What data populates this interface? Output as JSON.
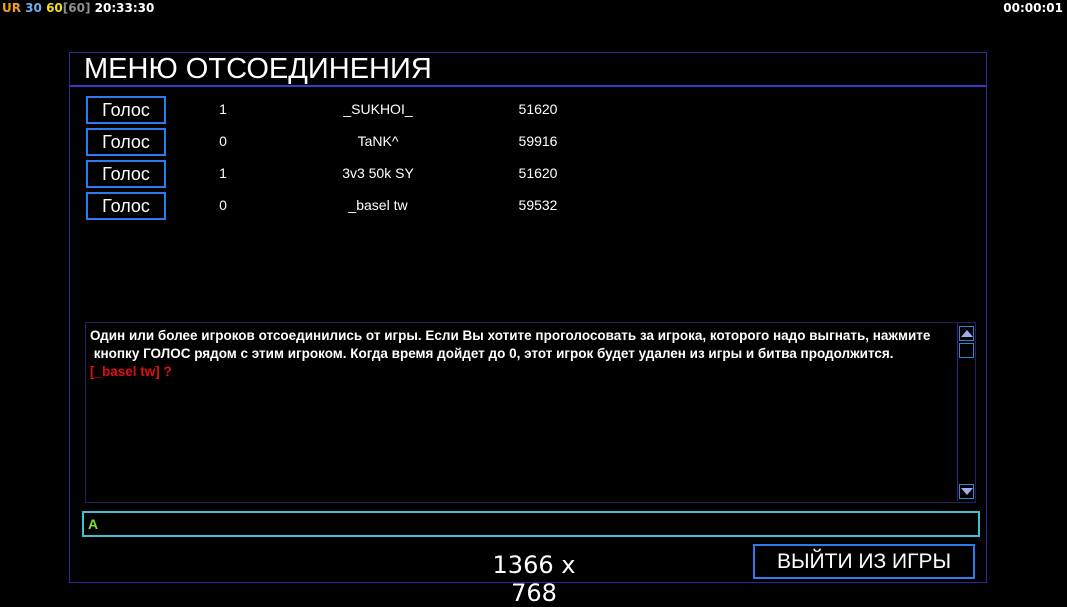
{
  "status_bar": {
    "ur": "UR",
    "fps_a": "30",
    "fps_b": "60",
    "fps_cap": "[60]",
    "clock": "20:33:30",
    "elapsed": "00:00:01",
    "colors": {
      "ur": "#f0a020",
      "fps_a": "#70b0f0",
      "fps_b": "#f0e020",
      "fps_cap": "#909090"
    }
  },
  "menu": {
    "title": "МЕНЮ ОТСОЕДИНЕНИЯ",
    "players": [
      {
        "vote_label": "Голос",
        "votes": "1",
        "name": "_SUKHOI_",
        "id": "51620"
      },
      {
        "vote_label": "Голос",
        "votes": "0",
        "name": "TaNK^",
        "id": "59916"
      },
      {
        "vote_label": "Голос",
        "votes": "1",
        "name": "3v3 50k SY",
        "id": "51620"
      },
      {
        "vote_label": "Голос",
        "votes": "0",
        "name": "_basel tw",
        "id": "59532"
      }
    ],
    "message_line1": "Один или более игроков отсоединились от игры. Если Вы хотите проголосовать за игрока, которого надо выгнать, нажмите",
    "message_line2": " кнопку ГОЛОС рядом с этим игроком. Когда время дойдет до 0, этот игрок будет удален из игры и битва продолжится.",
    "message_highlight": "[_basel tw] ?",
    "chat_input_value": "A",
    "resolution": "1366 x 768",
    "exit_label": "ВЫЙТИ ИЗ ИГРЫ"
  }
}
